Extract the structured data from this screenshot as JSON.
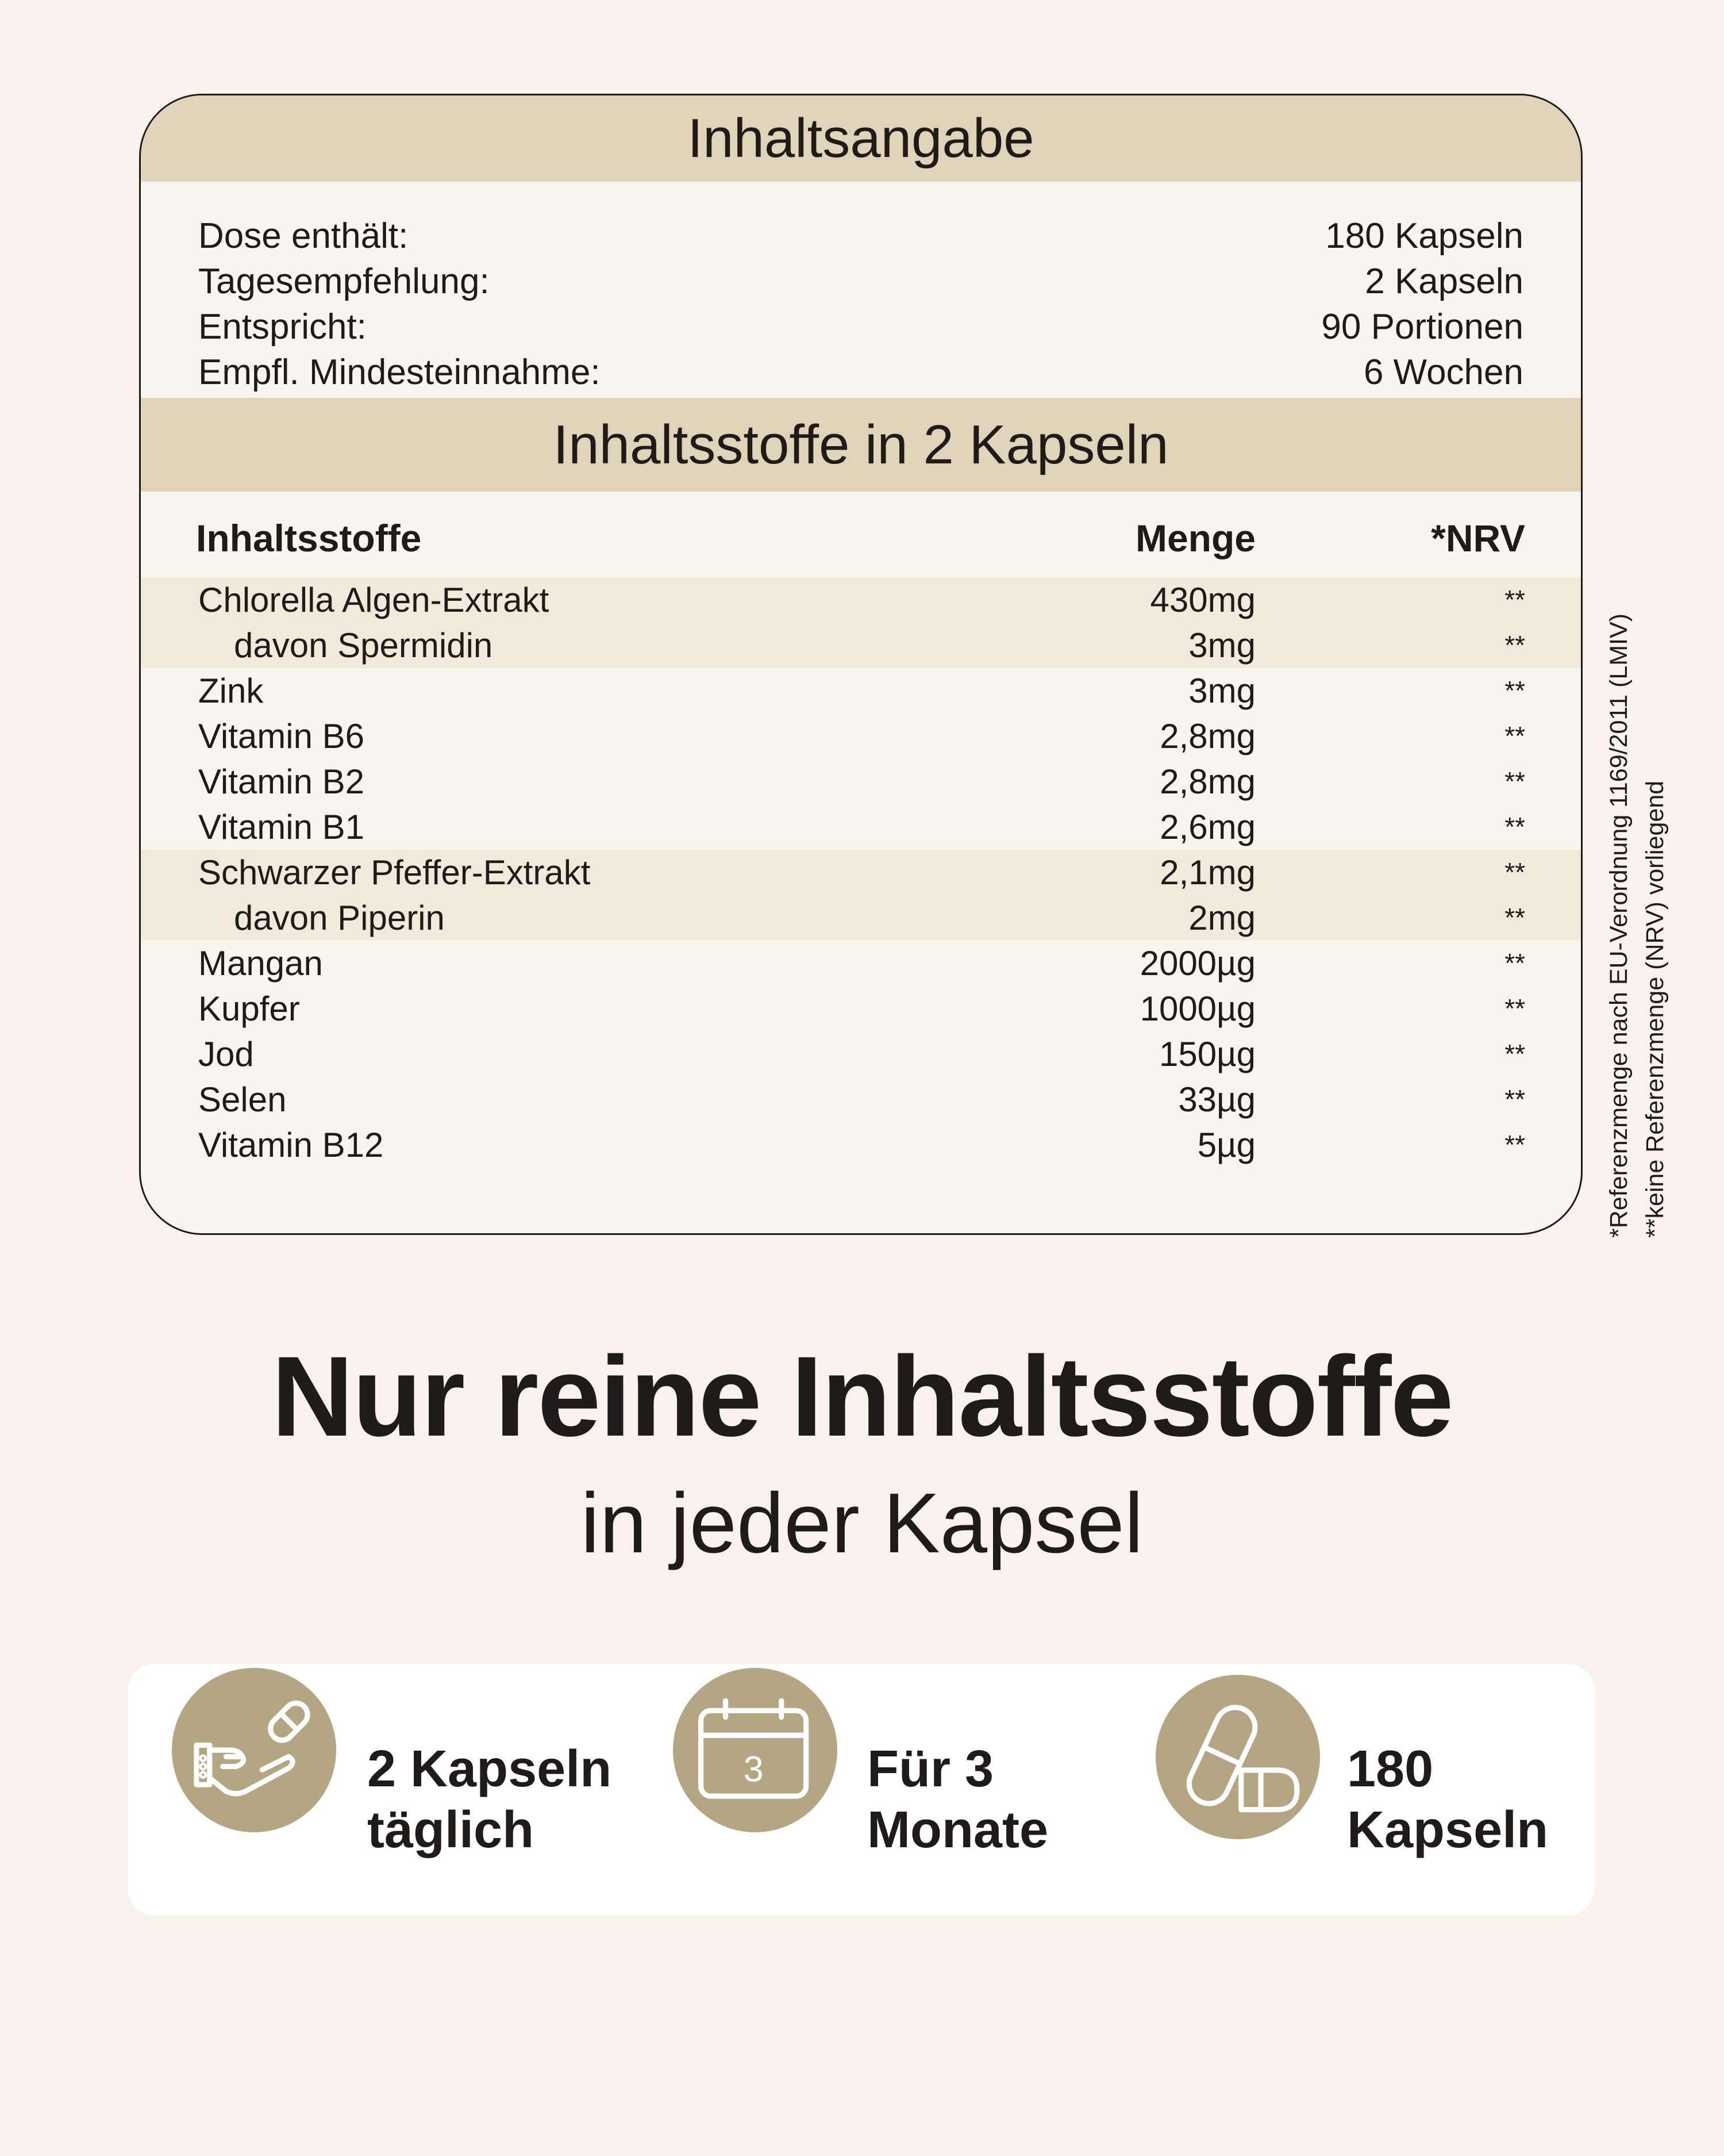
{
  "summary": {
    "title": "Inhaltsangabe",
    "rows": [
      {
        "label": "Dose enthält:",
        "value": "180 Kapseln"
      },
      {
        "label": "Tagesempfehlung:",
        "value": "2 Kapseln"
      },
      {
        "label": "Entspricht:",
        "value": "90 Portionen"
      },
      {
        "label": "Empfl. Mindesteinnahme:",
        "value": "6 Wochen"
      }
    ]
  },
  "ingredients": {
    "title": "Inhaltsstoffe in 2 Kapseln",
    "headers": {
      "name": "Inhaltsstoffe",
      "amount": "Menge",
      "nrv": "*NRV"
    },
    "rows": [
      {
        "name": "Chlorella Algen-Extrakt",
        "amount": "430mg",
        "nrv": "**"
      },
      {
        "name": "davon Spermidin",
        "amount": "3mg",
        "nrv": "**"
      },
      {
        "name": "Zink",
        "amount": "3mg",
        "nrv": "**"
      },
      {
        "name": "Vitamin B6",
        "amount": "2,8mg",
        "nrv": "**"
      },
      {
        "name": "Vitamin B2",
        "amount": "2,8mg",
        "nrv": "**"
      },
      {
        "name": "Vitamin B1",
        "amount": "2,6mg",
        "nrv": "**"
      },
      {
        "name": "Schwarzer Pfeffer-Extrakt",
        "amount": "2,1mg",
        "nrv": "**"
      },
      {
        "name": "davon Piperin",
        "amount": "2mg",
        "nrv": "**"
      },
      {
        "name": "Mangan",
        "amount": "2000µg",
        "nrv": "**"
      },
      {
        "name": "Kupfer",
        "amount": "1000µg",
        "nrv": "**"
      },
      {
        "name": "Jod",
        "amount": "150µg",
        "nrv": "**"
      },
      {
        "name": "Selen",
        "amount": "33µg",
        "nrv": "**"
      },
      {
        "name": "Vitamin B12",
        "amount": "5µg",
        "nrv": "**"
      }
    ],
    "footnotes": [
      "*Referenzmenge nach EU-Verordnung 1169/2011 (LMIV)",
      "**keine Referenzmenge (NRV) vorliegend"
    ]
  },
  "headline": {
    "title": "Nur reine Inhaltsstoffe",
    "subtitle": "in jeder Kapsel"
  },
  "features": [
    {
      "icon": "hand-capsule-icon",
      "line1": "2 Kapseln",
      "line2": "täglich"
    },
    {
      "icon": "calendar-icon",
      "calendar_number": "3",
      "line1": "Für 3",
      "line2": "Monate"
    },
    {
      "icon": "capsules-icon",
      "line1": "180",
      "line2": "Kapseln"
    }
  ],
  "colors": {
    "background": "#f7f3ec",
    "band": "#dfd4ba",
    "shaded_row": "#f1eadc",
    "icon_circle": "#b5a683",
    "text": "#1e1b18"
  }
}
